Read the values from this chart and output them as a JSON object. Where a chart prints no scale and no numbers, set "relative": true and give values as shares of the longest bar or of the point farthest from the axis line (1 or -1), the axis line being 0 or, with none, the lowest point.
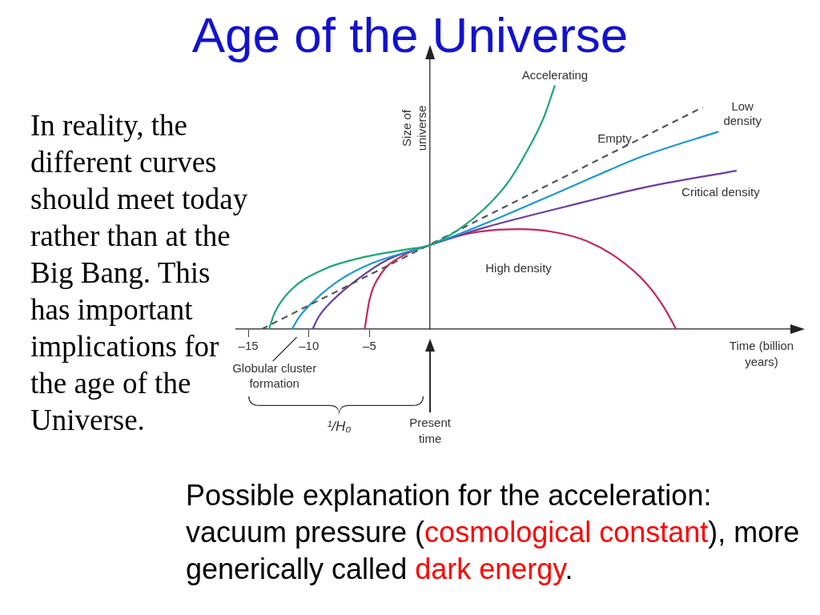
{
  "chart_data": {
    "type": "line",
    "title": "Age of the Universe",
    "xlabel": "Time (billion years)",
    "ylabel": "Size of universe",
    "relative": true,
    "xlim": [
      -16,
      30
    ],
    "xticks": [
      {
        "value": -15,
        "label": "–15"
      },
      {
        "value": -10,
        "label": "–10"
      },
      {
        "value": -5,
        "label": "–5"
      }
    ],
    "grid": false,
    "legend": false,
    "marker": "none",
    "tick_labels": "x",
    "series": [
      {
        "name": "Accelerating",
        "color": "#1aa872",
        "x": [
          -13.3,
          -12.8,
          -11.5,
          -8.8,
          -5.5,
          -2.2,
          0,
          2.4,
          4.4,
          6.4,
          8.0,
          9.4,
          10.3
        ],
        "values": [
          0,
          0.07,
          0.16,
          0.245,
          0.295,
          0.325,
          0.345,
          0.41,
          0.49,
          0.6,
          0.73,
          0.87,
          1
        ]
      },
      {
        "name": "Empty",
        "color": "#555555",
        "line_style": "dashed",
        "x": [
          -13.9,
          22.5
        ],
        "values": [
          0,
          0.91
        ]
      },
      {
        "name": "Low density",
        "color": "#1b98d5",
        "x": [
          -11.4,
          -10.8,
          -9.5,
          -7.5,
          -4.8,
          0,
          4.4,
          11,
          17.6,
          23.8
        ],
        "values": [
          0,
          0.05,
          0.12,
          0.2,
          0.27,
          0.345,
          0.43,
          0.57,
          0.71,
          0.81
        ]
      },
      {
        "name": "Critical density",
        "color": "#6b3d9e",
        "x": [
          -9.7,
          -9.2,
          -8.2,
          -6.1,
          -3.5,
          0,
          4.4,
          11,
          17.6,
          25.3
        ],
        "values": [
          0,
          0.05,
          0.11,
          0.2,
          0.285,
          0.345,
          0.415,
          0.5,
          0.58,
          0.65
        ]
      },
      {
        "name": "High density",
        "color": "#c4275e",
        "x": [
          -5.4,
          -5.0,
          -4.0,
          -2.3,
          0,
          3.0,
          5.0,
          7.3,
          10,
          13,
          15.5,
          17.8,
          19.3,
          20.3
        ],
        "values": [
          0,
          0.12,
          0.23,
          0.3,
          0.345,
          0.39,
          0.405,
          0.41,
          0.4,
          0.36,
          0.29,
          0.19,
          0.09,
          0
        ]
      }
    ],
    "annotations": [
      {
        "text": "Globular cluster formation",
        "x": -11,
        "y": 0
      },
      "¹/H₀",
      "Present time",
      "In reality, the different curves should meet today rather than at the Big Bang. This has important implications for the age of the Universe.",
      "Possible explanation for the acceleration: vacuum pressure (",
      "cosmological constant",
      "), more generically called ",
      "dark energy",
      "."
    ]
  }
}
